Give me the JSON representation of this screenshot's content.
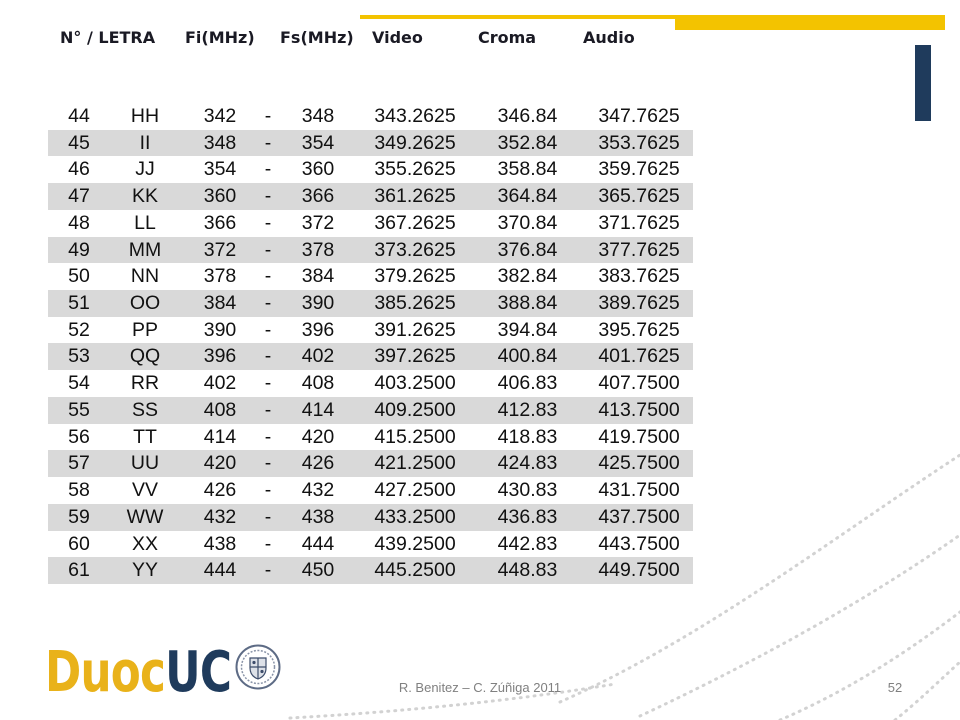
{
  "colors": {
    "accent": "#f3c300",
    "navy": "#1f3b5c",
    "stripe": "#d9d9d9",
    "logo_gold": "#e9b21a"
  },
  "table": {
    "headers": [
      "N° / LETRA",
      "Fi(MHz)",
      "Fs(MHz)",
      "Video",
      "Croma",
      "Audio"
    ],
    "rows": [
      [
        "44",
        "HH",
        "342",
        "-",
        "348",
        "343.2625",
        "346.84",
        "347.7625"
      ],
      [
        "45",
        "II",
        "348",
        "-",
        "354",
        "349.2625",
        "352.84",
        "353.7625"
      ],
      [
        "46",
        "JJ",
        "354",
        "-",
        "360",
        "355.2625",
        "358.84",
        "359.7625"
      ],
      [
        "47",
        "KK",
        "360",
        "-",
        "366",
        "361.2625",
        "364.84",
        "365.7625"
      ],
      [
        "48",
        "LL",
        "366",
        "-",
        "372",
        "367.2625",
        "370.84",
        "371.7625"
      ],
      [
        "49",
        "MM",
        "372",
        "-",
        "378",
        "373.2625",
        "376.84",
        "377.7625"
      ],
      [
        "50",
        "NN",
        "378",
        "-",
        "384",
        "379.2625",
        "382.84",
        "383.7625"
      ],
      [
        "51",
        "OO",
        "384",
        "-",
        "390",
        "385.2625",
        "388.84",
        "389.7625"
      ],
      [
        "52",
        "PP",
        "390",
        "-",
        "396",
        "391.2625",
        "394.84",
        "395.7625"
      ],
      [
        "53",
        "QQ",
        "396",
        "-",
        "402",
        "397.2625",
        "400.84",
        "401.7625"
      ],
      [
        "54",
        "RR",
        "402",
        "-",
        "408",
        "403.2500",
        "406.83",
        "407.7500"
      ],
      [
        "55",
        "SS",
        "408",
        "-",
        "414",
        "409.2500",
        "412.83",
        "413.7500"
      ],
      [
        "56",
        "TT",
        "414",
        "-",
        "420",
        "415.2500",
        "418.83",
        "419.7500"
      ],
      [
        "57",
        "UU",
        "420",
        "-",
        "426",
        "421.2500",
        "424.83",
        "425.7500"
      ],
      [
        "58",
        "VV",
        "426",
        "-",
        "432",
        "427.2500",
        "430.83",
        "431.7500"
      ],
      [
        "59",
        "WW",
        "432",
        "-",
        "438",
        "433.2500",
        "436.83",
        "437.7500"
      ],
      [
        "60",
        "XX",
        "438",
        "-",
        "444",
        "439.2500",
        "442.83",
        "443.7500"
      ],
      [
        "61",
        "YY",
        "444",
        "-",
        "450",
        "445.2500",
        "448.83",
        "449.7500"
      ]
    ]
  },
  "logo": {
    "part1": "Duoc",
    "part2": "UC"
  },
  "footer": {
    "credit": "R. Benitez – C. Zúñiga 2011",
    "page_number": "52"
  }
}
